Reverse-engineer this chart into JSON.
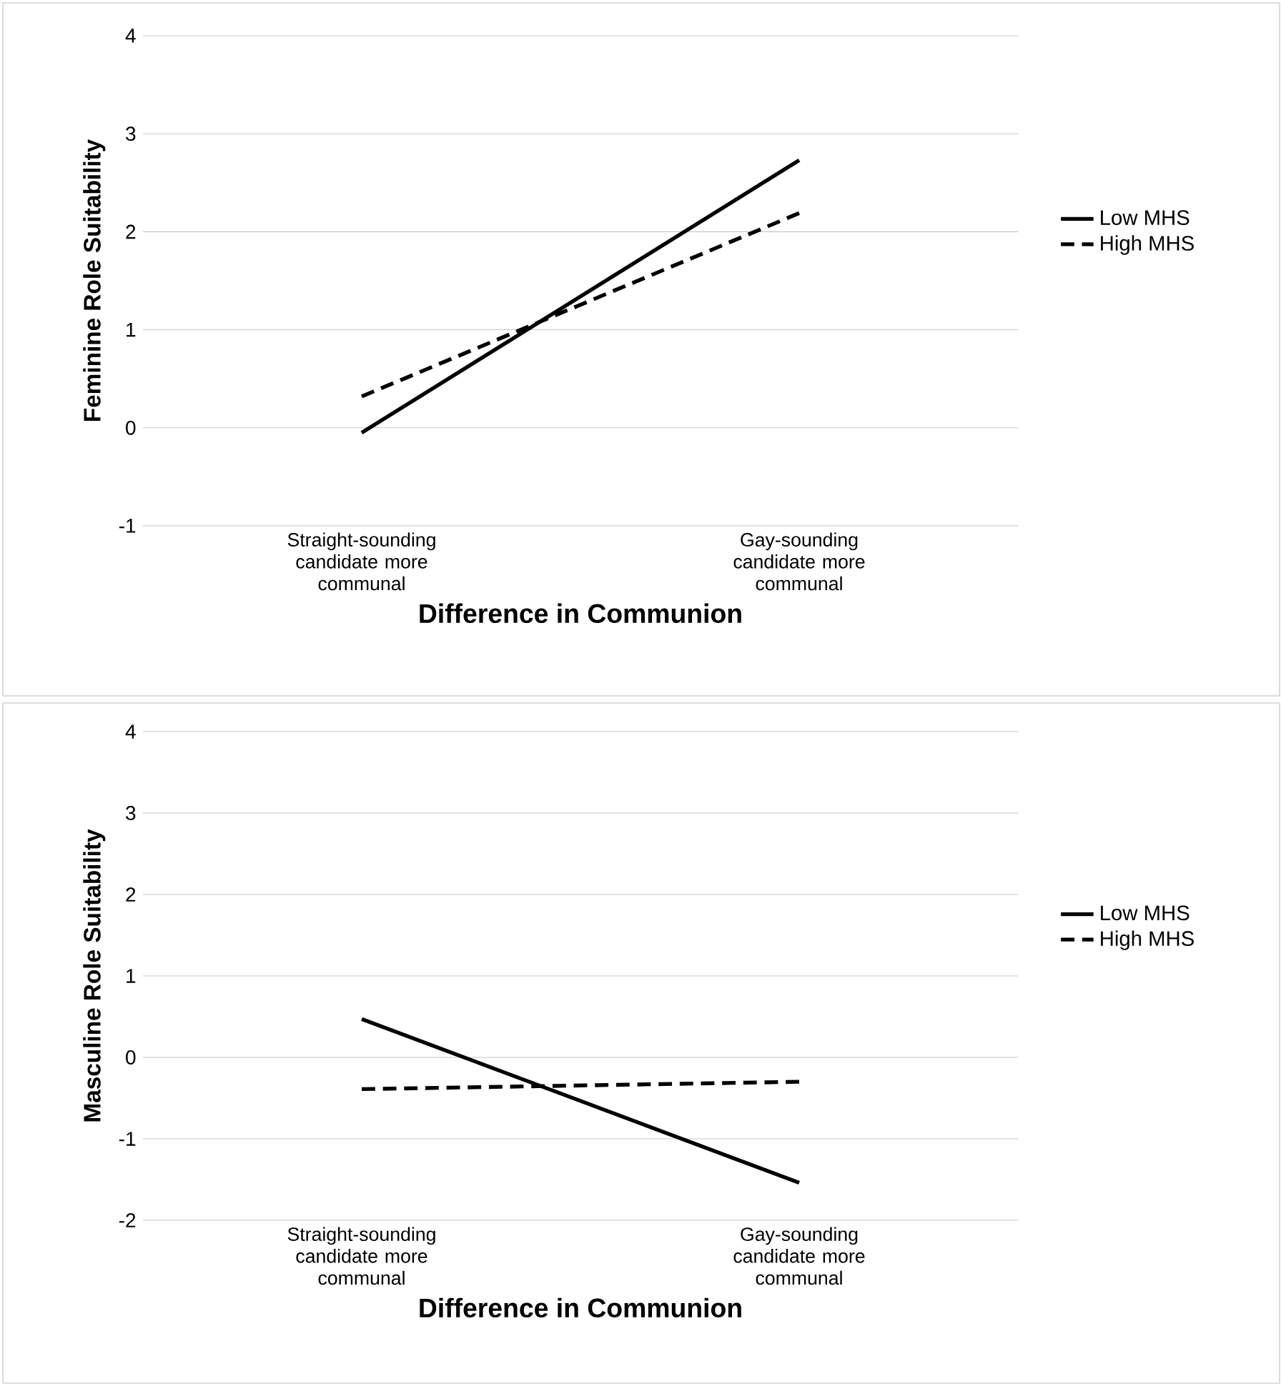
{
  "chart_data": [
    {
      "type": "line",
      "xlabel": "Difference in Communion",
      "ylabel": "Feminine Role Suitability",
      "categories": [
        "Straight-sounding candidate more communal",
        "Gay-sounding candidate more communal"
      ],
      "series": [
        {
          "name": "Low MHS",
          "color": "#000000",
          "line_style": "solid",
          "values": [
            -0.05,
            2.73
          ]
        },
        {
          "name": "High MHS",
          "color": "#000000",
          "line_style": "dashed",
          "values": [
            0.32,
            2.19
          ]
        }
      ],
      "ylim": [
        -1,
        4
      ],
      "yticks": [
        -1,
        0,
        1,
        2,
        3,
        4
      ],
      "grid": "y",
      "legend": "right"
    },
    {
      "type": "line",
      "xlabel": "Difference in Communion",
      "ylabel": "Masculine Role Suitability",
      "categories": [
        "Straight-sounding candidate more communal",
        "Gay-sounding candidate more communal"
      ],
      "series": [
        {
          "name": "Low MHS",
          "color": "#000000",
          "line_style": "solid",
          "values": [
            0.47,
            -1.54
          ]
        },
        {
          "name": "High MHS",
          "color": "#000000",
          "line_style": "dashed",
          "values": [
            -0.39,
            -0.3
          ]
        }
      ],
      "ylim": [
        -2,
        4
      ],
      "yticks": [
        -2,
        -1,
        0,
        1,
        2,
        3,
        4
      ],
      "grid": "y",
      "legend": "right"
    }
  ]
}
